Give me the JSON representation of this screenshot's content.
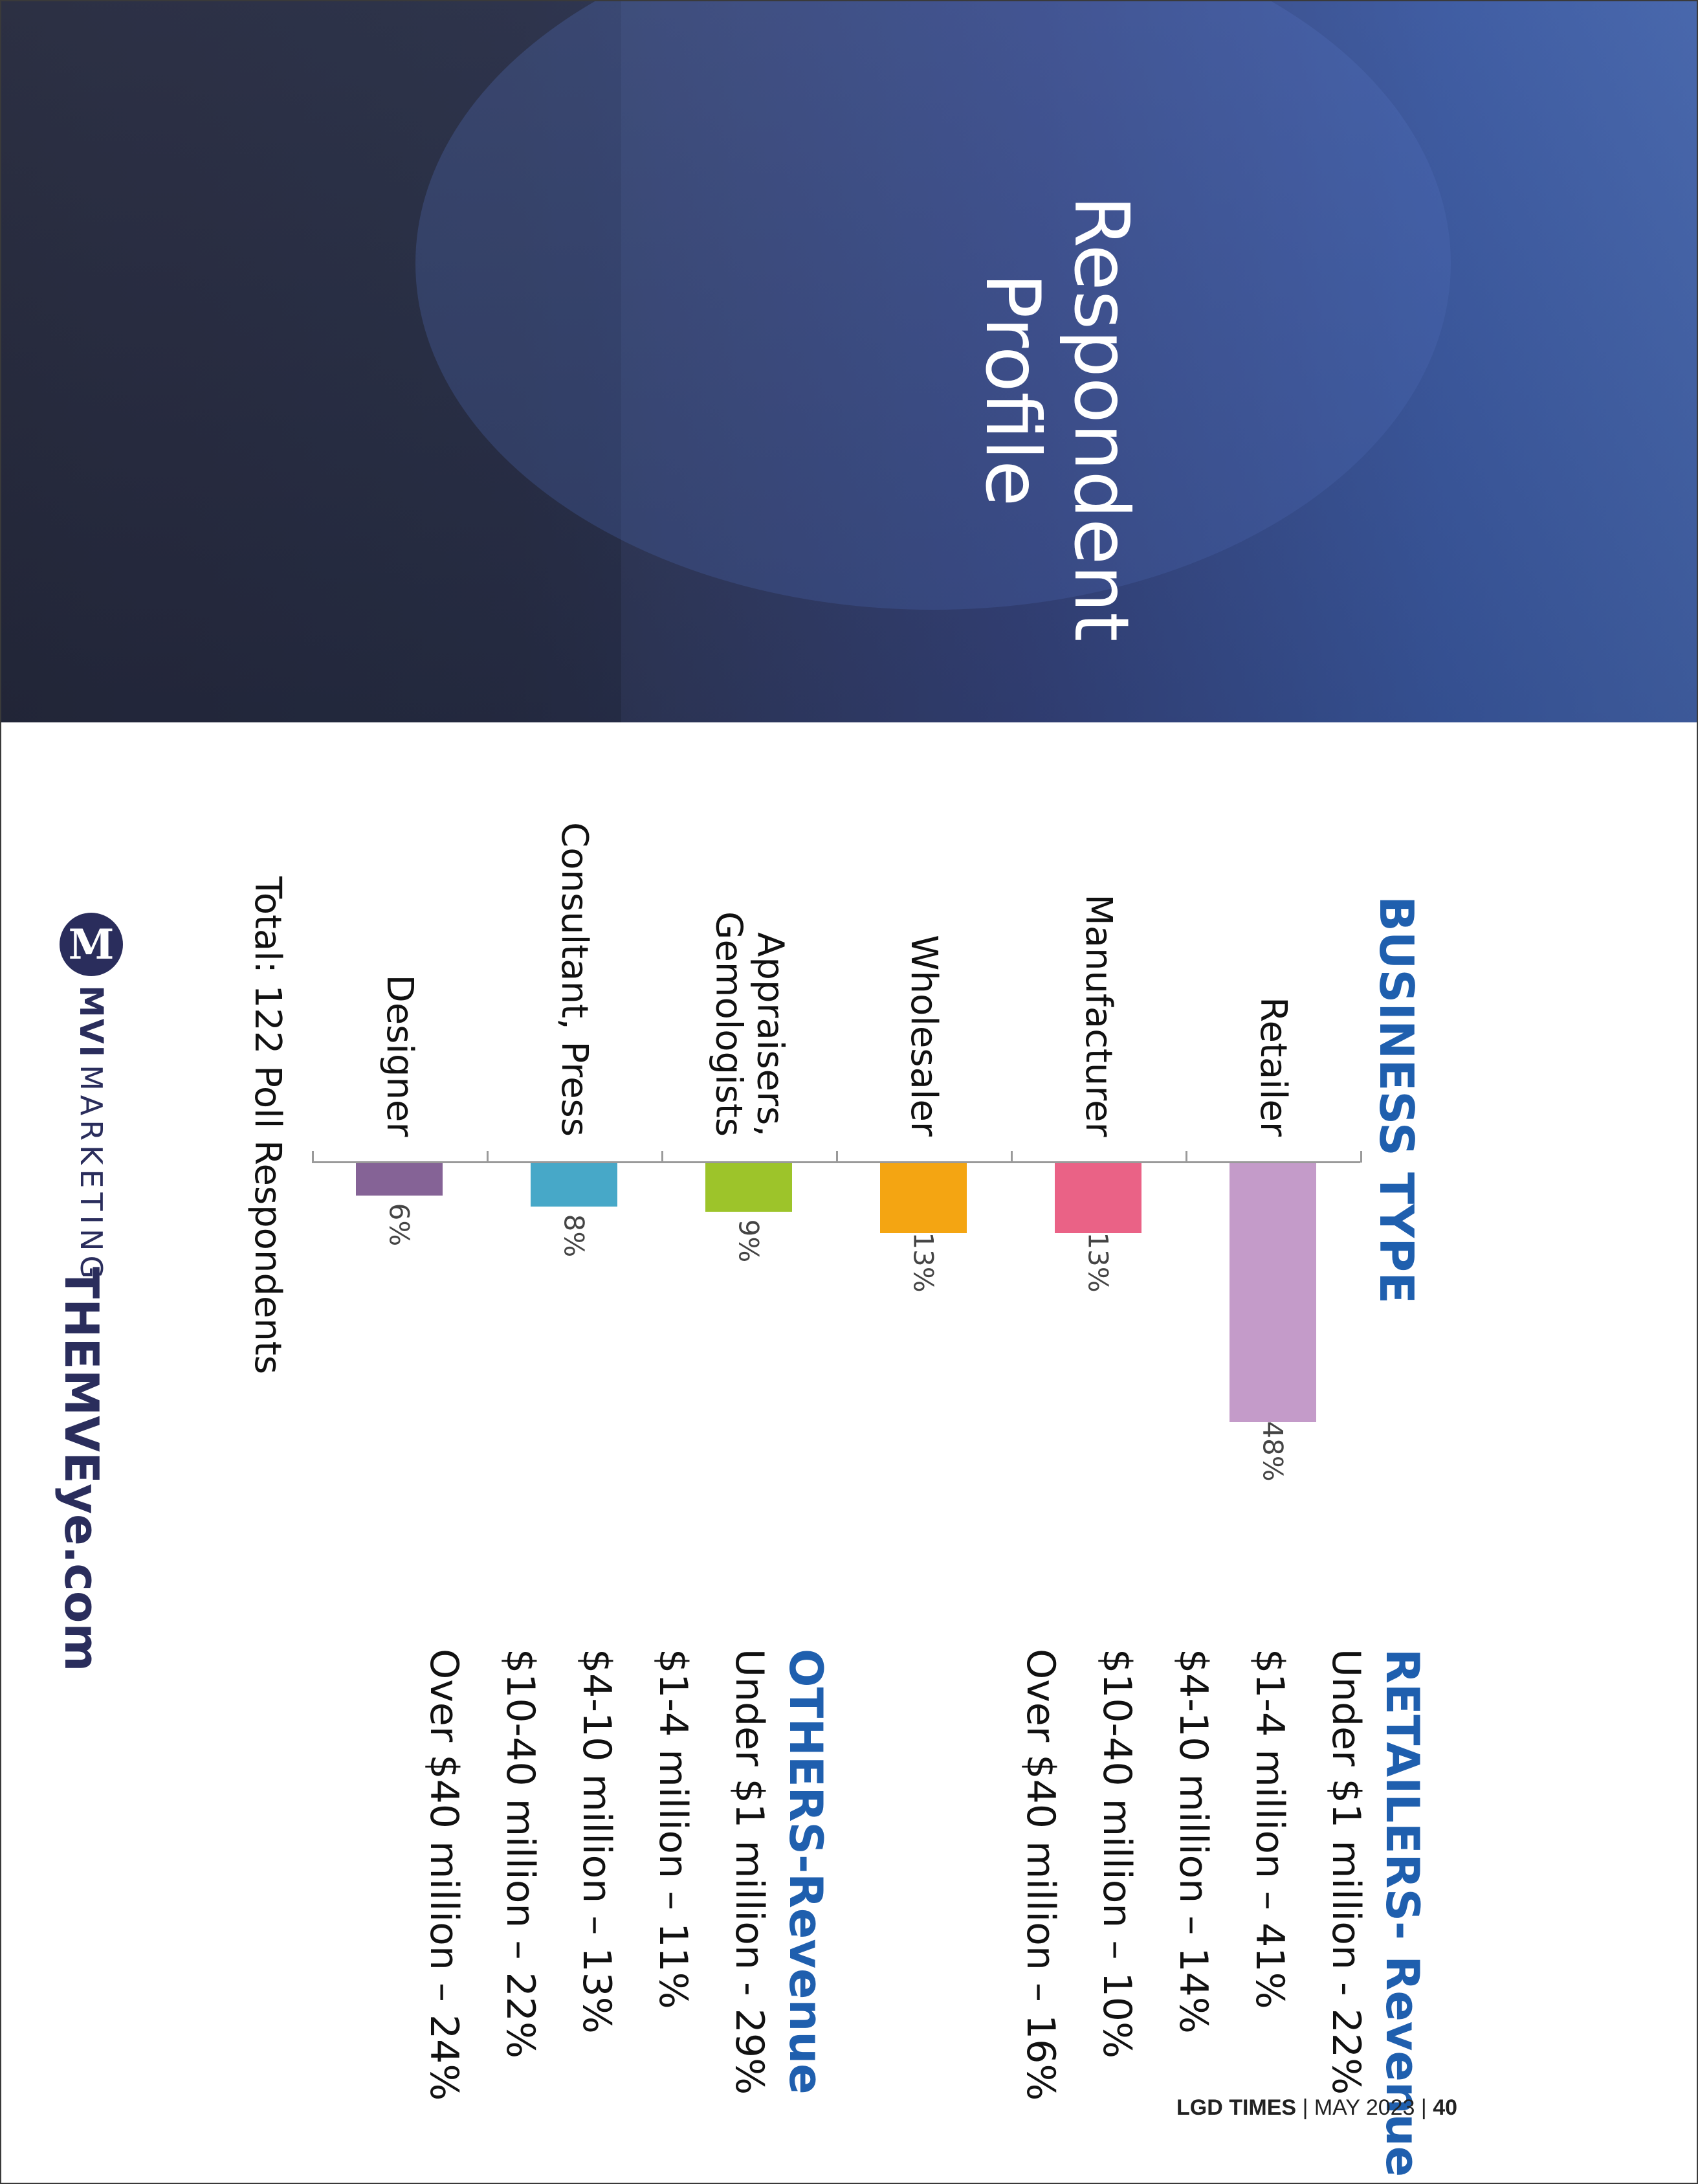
{
  "header": {
    "title_line1": "Respondent",
    "title_line2": "Profile",
    "colors": {
      "dark": "#2b2f45",
      "blue": "#4363aa"
    }
  },
  "business_type": {
    "title": "BUSINESS TYPE",
    "total_text": "Total: 122 Poll Respondents"
  },
  "chart_data": {
    "type": "bar",
    "orientation": "horizontal",
    "title": "BUSINESS TYPE",
    "categories": [
      "Retailer",
      "Manufacturer",
      "Wholesaler",
      "Appraisers, Gemologists",
      "Consultant, Press",
      "Designer"
    ],
    "category_lines": [
      [
        "Retailer"
      ],
      [
        "Manufacturer"
      ],
      [
        "Wholesaler"
      ],
      [
        "Appraisers,",
        "Gemologists"
      ],
      [
        "Consultant, Press"
      ],
      [
        "Designer"
      ]
    ],
    "values": [
      48,
      13,
      13,
      9,
      8,
      6
    ],
    "value_labels": [
      "48%",
      "13%",
      "13%",
      "9%",
      "8%",
      "6%"
    ],
    "colors": [
      "#c49bc9",
      "#ea6286",
      "#f4a512",
      "#9dc42a",
      "#47a8c8",
      "#856396"
    ],
    "unit": "%",
    "xlim": [
      0,
      48
    ]
  },
  "retailers_revenue": {
    "title": "RETAILERS- Revenue",
    "items": [
      "Under $1 million - 22%",
      "$1-4 million – 41%",
      "$4-10 million – 14%",
      "$10-40 million – 10%",
      "Over $40 million – 16%"
    ]
  },
  "others_revenue": {
    "title": "OTHERS-Revenue",
    "items": [
      "Under $1 million - 29%",
      "$1-4 million – 11%",
      "$4-10 million – 13%",
      "$10-40 million – 22%",
      "Over $40 million – 24%"
    ]
  },
  "brand": {
    "logo_letter": "M",
    "logo_bold": "MVI",
    "logo_light": "MARKETING",
    "site": "THEMVEye.com",
    "color": "#2a2d5c"
  },
  "footer": {
    "publication": "LGD TIMES",
    "issue": "MAY 2023",
    "page_number": "40"
  }
}
